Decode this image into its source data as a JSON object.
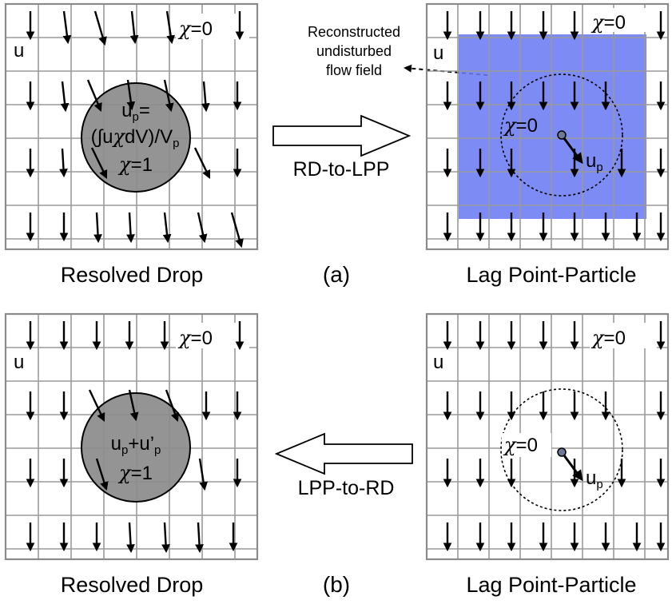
{
  "panels": {
    "a_left": {
      "caption": "Resolved Drop",
      "u_label": "u",
      "chi_zero_symbol": "χ",
      "chi_zero_value": "=0",
      "up_base": "u",
      "up_sub": "p",
      "up_eq": "=",
      "integral_open": "(∫u",
      "integral_chi": "χ",
      "integral_close": "dV)/V",
      "integral_sub": "p",
      "chi_one_symbol": "χ",
      "chi_one_value": "=1"
    },
    "a_right": {
      "caption": "Lag Point-Particle",
      "u_label": "u",
      "chi_zero_symbol": "χ",
      "chi_zero_value": "=0",
      "chi_drop_symbol": "χ",
      "chi_drop_value": "=0",
      "up_base": "u",
      "up_sub": "p"
    },
    "b_left": {
      "caption": "Resolved Drop",
      "u_label": "u",
      "chi_zero_symbol": "χ",
      "chi_zero_value": "=0",
      "up_base": "u",
      "up_sub": "p",
      "up_plus": "+u’",
      "up_sub2": "p",
      "chi_one_symbol": "χ",
      "chi_one_value": "=1"
    },
    "b_right": {
      "caption": "Lag Point-Particle",
      "u_label": "u",
      "chi_zero_symbol": "χ",
      "chi_zero_value": "=0",
      "chi_drop_symbol": "χ",
      "chi_drop_value": "=0",
      "up_base": "u",
      "up_sub": "p"
    }
  },
  "arrows": {
    "a": "RD-to-LPP",
    "b": "LPP-to-RD"
  },
  "labels": {
    "a": "(a)",
    "b": "(b)"
  },
  "annotation": {
    "line1": "Reconstructed",
    "line2": "undisturbed",
    "line3": "flow field"
  },
  "colors": {
    "drop_fill": "#8c8c8c",
    "reconstructed_region": "#6b7cf4",
    "grid": "#9a9a9a",
    "particle": "#6c7a96"
  }
}
